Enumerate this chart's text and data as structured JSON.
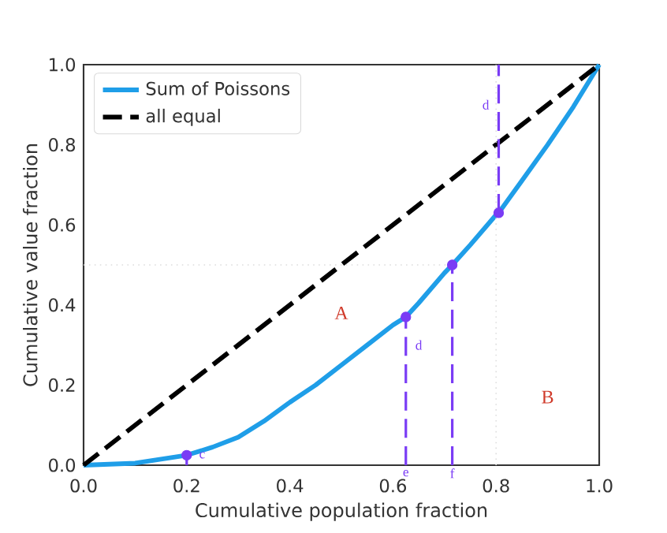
{
  "chart_data": {
    "type": "line",
    "xlabel": "Cumulative population fraction",
    "ylabel": "Cumulative value fraction",
    "xlim": [
      0,
      1
    ],
    "ylim": [
      0,
      1
    ],
    "xticks": [
      {
        "value": 0,
        "label": "0.0"
      },
      0.2,
      0.4,
      0.6,
      0.8,
      {
        "value": 1,
        "label": "1.0"
      }
    ],
    "yticks": [
      {
        "value": 0,
        "label": "0.0"
      },
      0.2,
      0.4,
      0.6,
      0.8,
      {
        "value": 1,
        "label": "1.0"
      }
    ],
    "grid": false,
    "legend": "top left",
    "series": [
      {
        "name": "Sum of Poissons",
        "color": "#1f9ee8",
        "line_style": "solid",
        "marker": "none",
        "x": [
          0,
          0.1,
          0.2,
          0.25,
          0.3,
          0.35,
          0.4,
          0.45,
          0.5,
          0.55,
          0.6,
          0.625,
          0.65,
          0.7,
          0.715,
          0.75,
          0.8,
          0.805,
          0.85,
          0.9,
          0.95,
          1
        ],
        "values": [
          0,
          0.005,
          0.025,
          0.045,
          0.07,
          0.11,
          0.157,
          0.2,
          0.25,
          0.3,
          0.35,
          0.37,
          0.405,
          0.48,
          0.5,
          0.55,
          0.625,
          0.63,
          0.71,
          0.8,
          0.895,
          1
        ]
      },
      {
        "name": "all equal",
        "color": "#000000",
        "line_style": "dashed",
        "marker": "none",
        "x": [
          0,
          1
        ],
        "values": [
          0,
          1
        ]
      },
      {
        "color": "#dddddd",
        "line_style": "dotted",
        "marker": "none",
        "x": [
          0,
          0.715
        ],
        "values": [
          0.5,
          0.5
        ]
      },
      {
        "color": "#dddddd",
        "line_style": "dotted",
        "marker": "none",
        "x": [
          0.8,
          0.8
        ],
        "values": [
          0,
          1
        ]
      },
      {
        "color": "#7a3cf5",
        "line_style": "dashed",
        "marker": "none",
        "x": [
          0.2,
          0.2
        ],
        "values": [
          0,
          0.025
        ]
      },
      {
        "color": "#7a3cf5",
        "line_style": "dashed",
        "marker": "none",
        "x": [
          0.625,
          0.625
        ],
        "values": [
          0,
          0.37
        ]
      },
      {
        "color": "#7a3cf5",
        "line_style": "dashed",
        "marker": "none",
        "x": [
          0.715,
          0.715
        ],
        "values": [
          0,
          0.5
        ]
      },
      {
        "color": "#7a3cf5",
        "line_style": "dashed",
        "marker": "none",
        "x": [
          0.805,
          0.805
        ],
        "values": [
          0.63,
          1
        ]
      },
      {
        "type": "scatter",
        "color": "#7a3cf5",
        "marker": "circle",
        "x": [
          0.2,
          0.625,
          0.715,
          0.805
        ],
        "values": [
          0.025,
          0.37,
          0.5,
          0.63
        ]
      }
    ],
    "annotations": [
      "A",
      "B",
      "c",
      "d",
      "e",
      "f",
      "d"
    ]
  }
}
